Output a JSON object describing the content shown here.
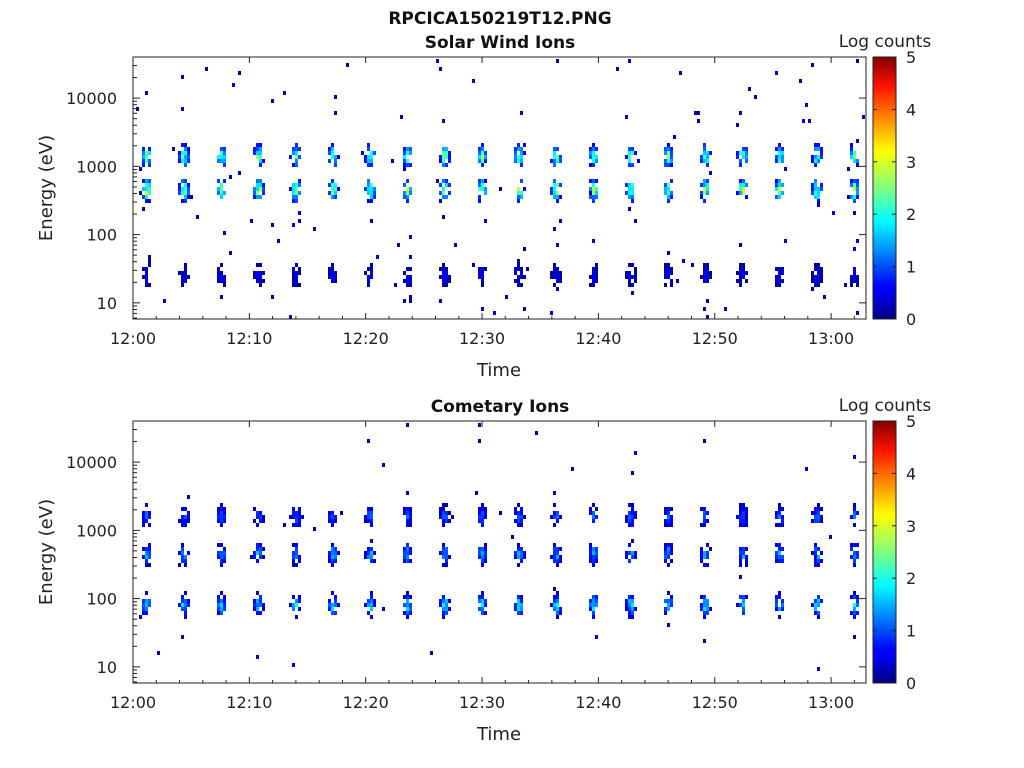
{
  "figure": {
    "title": "RPCICA150219T12.PNG"
  },
  "chart_data": [
    {
      "type": "heatmap",
      "title": "Solar Wind Ions",
      "xlabel": "Time",
      "ylabel": "Energy (eV)",
      "x_tick_labels": [
        "12:00",
        "12:10",
        "12:20",
        "12:30",
        "12:40",
        "12:50",
        "13:00"
      ],
      "x_range_minutes": [
        0,
        63
      ],
      "y_scale": "log",
      "y_tick_values": [
        10,
        100,
        1000,
        10000
      ],
      "y_tick_labels": [
        "10",
        "100",
        "1000",
        "10000"
      ],
      "y_range": [
        5.8,
        40000
      ],
      "colorbar": {
        "label": "Log counts",
        "range": [
          0,
          5
        ],
        "tick_labels": [
          "0",
          "1",
          "2",
          "3",
          "4",
          "5"
        ],
        "colormap": "jet"
      },
      "sweep_period_minutes": 3.2,
      "sweep_offset_minutes": 1.2,
      "bands": [
        {
          "energy_eV": 1400,
          "peak_log_counts": 2.6
        },
        {
          "energy_eV": 450,
          "peak_log_counts": 2.9
        },
        {
          "energy_eV": 25,
          "peak_log_counts": 0.6
        }
      ]
    },
    {
      "type": "heatmap",
      "title": "Cometary Ions",
      "xlabel": "Time",
      "ylabel": "Energy (eV)",
      "x_tick_labels": [
        "12:00",
        "12:10",
        "12:20",
        "12:30",
        "12:40",
        "12:50",
        "13:00"
      ],
      "x_range_minutes": [
        0,
        63
      ],
      "y_scale": "log",
      "y_tick_values": [
        10,
        100,
        1000,
        10000
      ],
      "y_tick_labels": [
        "10",
        "100",
        "1000",
        "10000"
      ],
      "y_range": [
        5.8,
        40000
      ],
      "colorbar": {
        "label": "Log counts",
        "range": [
          0,
          5
        ],
        "tick_labels": [
          "0",
          "1",
          "2",
          "3",
          "4",
          "5"
        ],
        "colormap": "jet"
      },
      "sweep_period_minutes": 3.2,
      "sweep_offset_minutes": 1.2,
      "bands": [
        {
          "energy_eV": 1600,
          "peak_log_counts": 1.2
        },
        {
          "energy_eV": 450,
          "peak_log_counts": 1.6
        },
        {
          "energy_eV": 80,
          "peak_log_counts": 1.9
        }
      ]
    }
  ]
}
